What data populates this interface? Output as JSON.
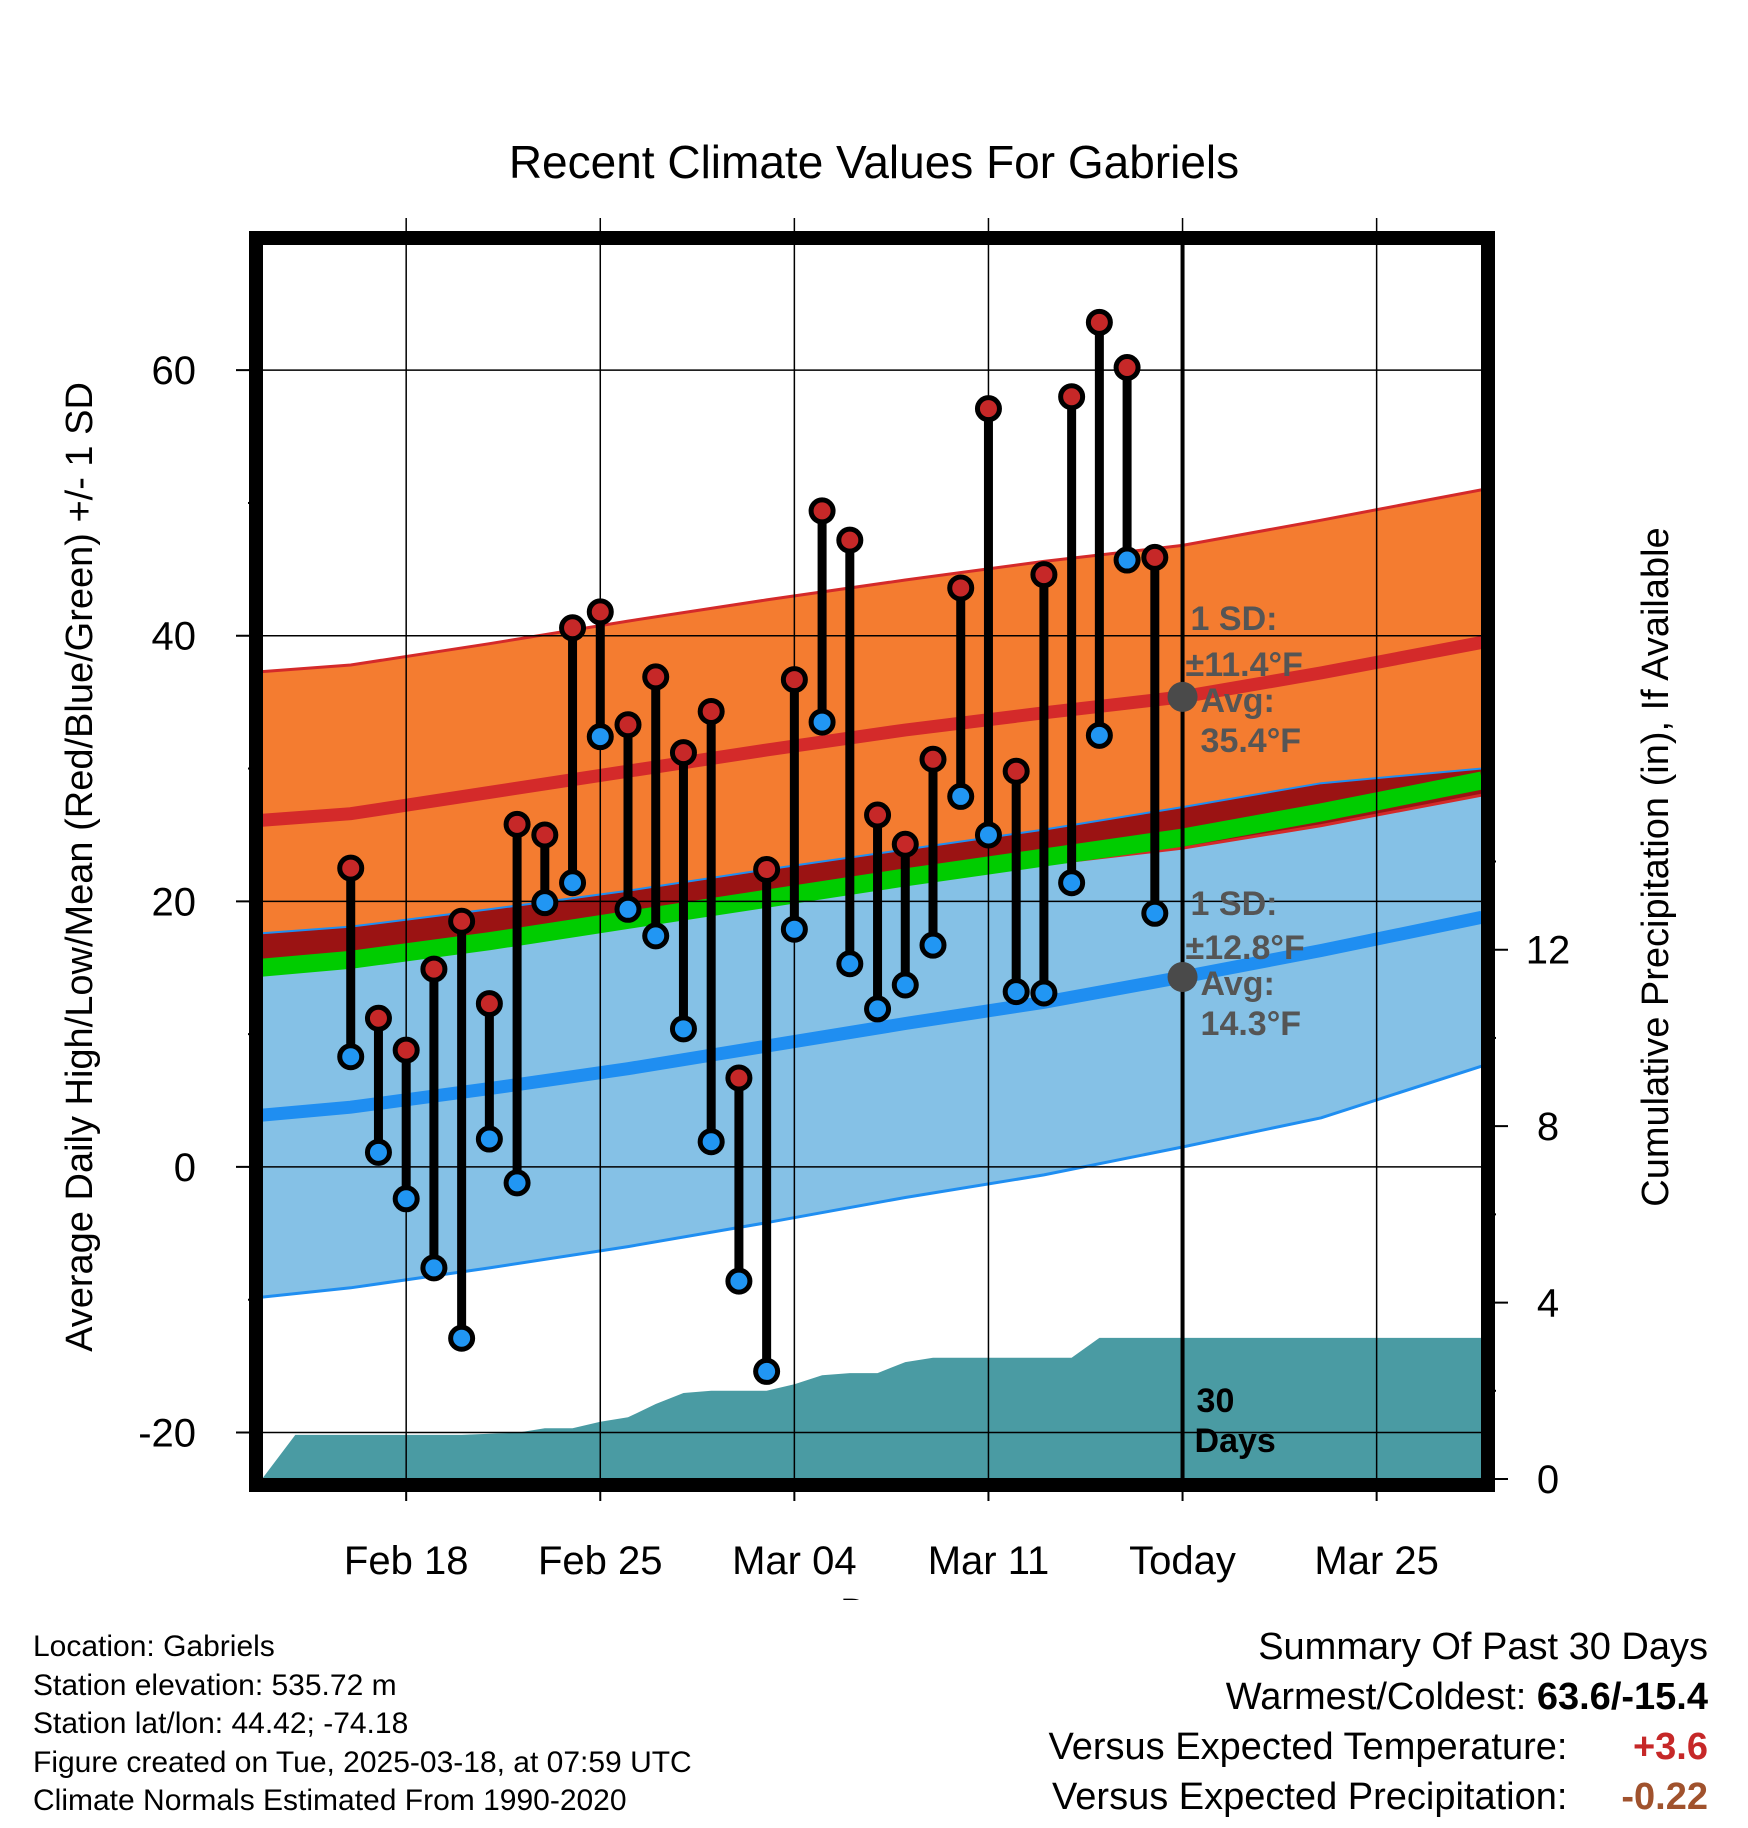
{
  "chart_data": {
    "type": "range-bar-with-bands",
    "title": "Recent Climate Values For Gabriels",
    "xlabel": "Day",
    "ylabel_left": "Average Daily High/Low/Mean (Red/Blue/Green) +/- 1 SD",
    "ylabel_right": "Cumulative Precipitation (in), If Available",
    "ylim_left": [
      -23.5,
      69.5
    ],
    "ylim_right": [
      0,
      28
    ],
    "y_ticks_left": [
      -20,
      0,
      20,
      40,
      60
    ],
    "y_ticks_right": [
      0,
      4,
      8,
      12
    ],
    "x_range_days": [
      -33.2,
      10.8
    ],
    "x_ticks": [
      {
        "day": -28,
        "label": "Feb 18"
      },
      {
        "day": -21,
        "label": "Feb 25"
      },
      {
        "day": -14,
        "label": "Mar 04"
      },
      {
        "day": -7,
        "label": "Mar 11"
      },
      {
        "day": 0,
        "label": "Today"
      },
      {
        "day": 7,
        "label": "Mar 25"
      }
    ],
    "daily": {
      "day": [
        -30,
        -29,
        -28,
        -27,
        -26,
        -25,
        -24,
        -23,
        -22,
        -21,
        -20,
        -19,
        -18,
        -17,
        -16,
        -15,
        -14,
        -13,
        -12,
        -11,
        -10,
        -9,
        -8,
        -7,
        -6,
        -5,
        -4,
        -3,
        -2,
        -1
      ],
      "high": [
        22.5,
        11.2,
        8.8,
        14.9,
        18.5,
        12.3,
        25.8,
        25.0,
        40.6,
        41.8,
        33.3,
        36.9,
        31.2,
        34.3,
        6.7,
        22.4,
        36.7,
        49.4,
        47.2,
        26.5,
        24.3,
        30.7,
        43.6,
        57.1,
        29.8,
        44.6,
        58.0,
        63.6,
        60.2,
        45.9
      ],
      "low": [
        8.3,
        1.1,
        -2.4,
        -7.6,
        -12.9,
        2.1,
        -1.2,
        19.9,
        21.4,
        32.4,
        19.4,
        17.4,
        10.4,
        1.9,
        -8.6,
        -15.4,
        17.9,
        33.5,
        15.3,
        11.9,
        13.7,
        16.7,
        27.9,
        25.0,
        13.2,
        13.1,
        21.4,
        32.5,
        45.7,
        19.1
      ]
    },
    "normals": {
      "day": [
        -33.2,
        -30,
        -25,
        -20,
        -15,
        -10,
        -5,
        0,
        5,
        10.8
      ],
      "high_mean": [
        26.1,
        26.6,
        28.2,
        29.8,
        31.4,
        32.9,
        34.2,
        35.4,
        37.2,
        39.5
      ],
      "high_sd": [
        11.2,
        11.2,
        11.2,
        11.3,
        11.3,
        11.3,
        11.4,
        11.4,
        11.5,
        11.5
      ],
      "low_mean": [
        3.9,
        4.5,
        5.9,
        7.4,
        9.1,
        10.8,
        12.4,
        14.3,
        16.3,
        18.8
      ],
      "low_sd": [
        13.7,
        13.6,
        13.5,
        13.4,
        13.3,
        13.1,
        13.0,
        12.8,
        12.6,
        11.2
      ],
      "mean_mean": [
        15.0,
        15.6,
        17.0,
        18.6,
        20.2,
        21.8,
        23.3,
        24.8,
        26.7,
        29.1
      ]
    },
    "precip": {
      "day": [
        -33.2,
        -32,
        -30,
        -28,
        -26,
        -24,
        -23,
        -22,
        -21,
        -20,
        -19,
        -18,
        -17,
        -16,
        -15,
        -14,
        -13,
        -12,
        -11,
        -10,
        -9,
        -8,
        -7,
        -6,
        -5,
        -4,
        -3,
        -2,
        -1,
        0,
        5,
        10.8
      ],
      "cumulative": [
        0.0,
        1.0,
        1.0,
        1.0,
        1.0,
        1.05,
        1.15,
        1.15,
        1.3,
        1.4,
        1.7,
        1.95,
        2.0,
        2.0,
        2.0,
        2.15,
        2.35,
        2.4,
        2.4,
        2.65,
        2.75,
        2.75,
        2.75,
        2.75,
        2.75,
        2.75,
        3.2,
        3.2,
        3.2,
        3.2,
        3.2,
        3.2
      ]
    },
    "annotations": {
      "high_sd_label": "1 SD:",
      "high_sd_value": "±11.4°F",
      "high_avg_label": "Avg:",
      "high_avg_value": "35.4°F",
      "high_avg": 35.4,
      "low_sd_label": "1 SD:",
      "low_sd_value": "±12.8°F",
      "low_avg_label": "Avg:",
      "low_avg_value": "14.3°F",
      "low_avg": 14.3,
      "days_label_num": "30",
      "days_label_word": "Days"
    },
    "colors": {
      "high_band": "#f47c30",
      "high_line": "#d42a2a",
      "low_band": "#85c1e6",
      "low_line": "#1f8ef1",
      "overlap_band": "#9b1313",
      "mean_line": "#00cc00",
      "precip": "#4a9ba3",
      "high_dot": "#c62828",
      "low_dot": "#2196f3",
      "avg_dot": "#4a4a4a"
    }
  },
  "location": {
    "location": "Location: Gabriels",
    "elevation": "Station elevation: 535.72 m",
    "latlon": "Station lat/lon: 44.42; -74.18",
    "created": "Figure created on Tue, 2025-03-18, at 07:59 UTC",
    "normals": "Climate Normals Estimated From 1990-2020"
  },
  "summary": {
    "title": "Summary Of Past 30 Days",
    "warm_label": "Warmest/Coldest:",
    "warm_value": "63.6/-15.4",
    "temp_label": "Versus Expected Temperature:",
    "temp_value": "+3.6",
    "prcp_label": "Versus Expected Precipitation:",
    "prcp_value": "-0.22"
  }
}
